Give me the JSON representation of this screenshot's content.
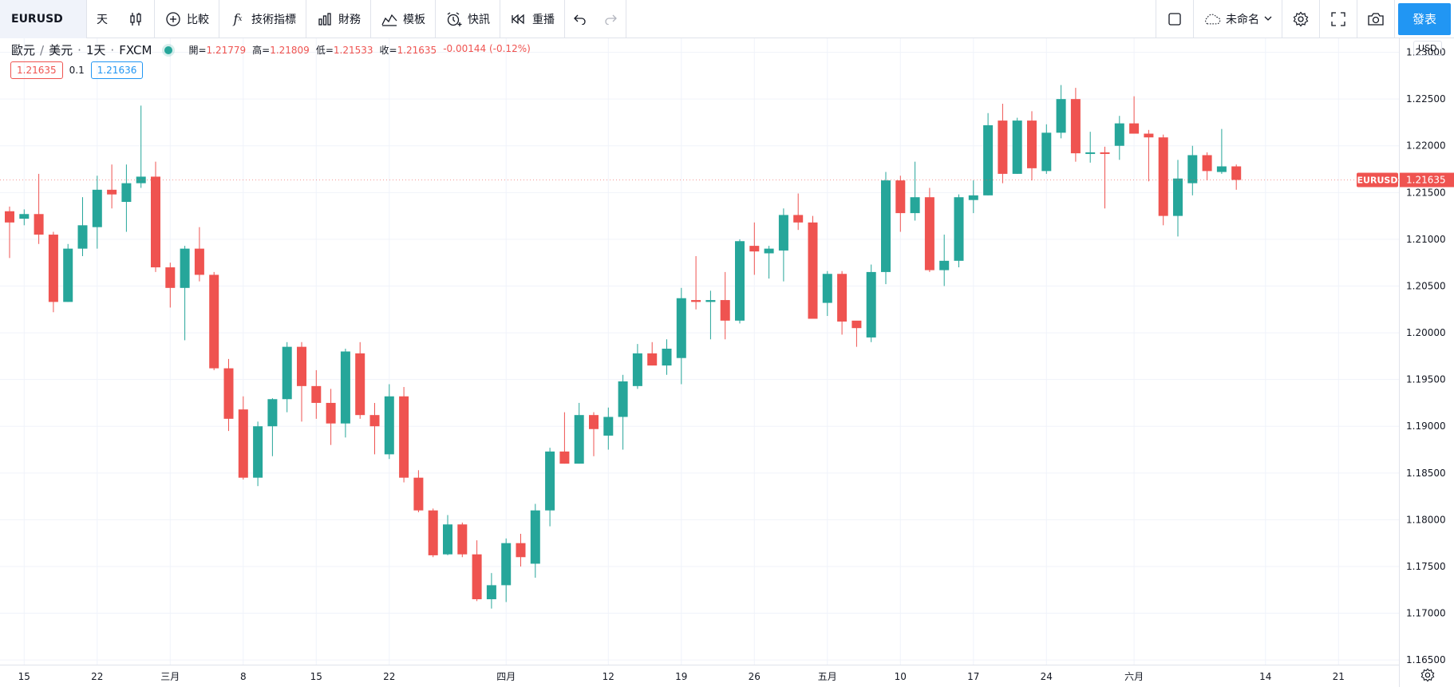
{
  "toolbar": {
    "symbol": "EURUSD",
    "interval": "天",
    "compare": "比較",
    "indicators": "技術指標",
    "financials": "財務",
    "templates": "模板",
    "alerts": "快訊",
    "replay": "重播",
    "layout_name": "未命名",
    "publish": "發表"
  },
  "legend": {
    "base": "歐元",
    "quote": "美元",
    "interval": "1天",
    "exchange": "FXCM",
    "open_label": "開=",
    "open": "1.21779",
    "high_label": "高=",
    "high": "1.21809",
    "low_label": "低=",
    "low": "1.21533",
    "close_label": "收=",
    "close": "1.21635",
    "change": "-0.00144",
    "change_pct": "(-0.12%)"
  },
  "trade": {
    "sell": "1.21635",
    "spread": "0.1",
    "buy": "1.21636"
  },
  "price_axis": {
    "currency": "USD",
    "last_label": "EURUSD",
    "last_price": "1.21635",
    "ticks": [
      "1.23000",
      "1.22500",
      "1.22000",
      "1.21500",
      "1.21000",
      "1.20500",
      "1.20000",
      "1.19500",
      "1.19000",
      "1.18500",
      "1.18000",
      "1.17500",
      "1.17000",
      "1.16500"
    ]
  },
  "time_axis": {
    "labels": [
      {
        "text": "15",
        "bar": 1
      },
      {
        "text": "22",
        "bar": 6
      },
      {
        "text": "三月",
        "bar": 11
      },
      {
        "text": "8",
        "bar": 16
      },
      {
        "text": "15",
        "bar": 21
      },
      {
        "text": "22",
        "bar": 26
      },
      {
        "text": "四月",
        "bar": 34
      },
      {
        "text": "12",
        "bar": 41
      },
      {
        "text": "19",
        "bar": 46
      },
      {
        "text": "26",
        "bar": 51
      },
      {
        "text": "五月",
        "bar": 56
      },
      {
        "text": "10",
        "bar": 61
      },
      {
        "text": "17",
        "bar": 66
      },
      {
        "text": "24",
        "bar": 71
      },
      {
        "text": "六月",
        "bar": 77
      },
      {
        "text": "14",
        "bar": 86
      },
      {
        "text": "21",
        "bar": 91
      }
    ]
  },
  "colors": {
    "up": "#26a69a",
    "down": "#ef5350",
    "grid": "#f0f3fa",
    "accent": "#2196f3"
  },
  "chart_data": {
    "type": "candlestick",
    "symbol": "EURUSD",
    "ylim": [
      1.1645,
      1.2315
    ],
    "candles": [
      {
        "o": 1.213,
        "h": 1.2135,
        "l": 1.208,
        "c": 1.2118
      },
      {
        "o": 1.2122,
        "h": 1.2132,
        "l": 1.2115,
        "c": 1.2127
      },
      {
        "o": 1.2127,
        "h": 1.217,
        "l": 1.2095,
        "c": 1.2105
      },
      {
        "o": 1.2105,
        "h": 1.2108,
        "l": 1.2022,
        "c": 1.2033
      },
      {
        "o": 1.2033,
        "h": 1.2095,
        "l": 1.2033,
        "c": 1.209
      },
      {
        "o": 1.209,
        "h": 1.2145,
        "l": 1.2082,
        "c": 1.2115
      },
      {
        "o": 1.2113,
        "h": 1.2168,
        "l": 1.209,
        "c": 1.2153
      },
      {
        "o": 1.2153,
        "h": 1.218,
        "l": 1.2133,
        "c": 1.2148
      },
      {
        "o": 1.214,
        "h": 1.218,
        "l": 1.2108,
        "c": 1.216
      },
      {
        "o": 1.216,
        "h": 1.2243,
        "l": 1.2155,
        "c": 1.2167
      },
      {
        "o": 1.2167,
        "h": 1.2183,
        "l": 1.2065,
        "c": 1.207
      },
      {
        "o": 1.207,
        "h": 1.2075,
        "l": 1.2027,
        "c": 1.2048
      },
      {
        "o": 1.2048,
        "h": 1.2093,
        "l": 1.1992,
        "c": 1.209
      },
      {
        "o": 1.209,
        "h": 1.2113,
        "l": 1.2055,
        "c": 1.2062
      },
      {
        "o": 1.2062,
        "h": 1.2065,
        "l": 1.196,
        "c": 1.1962
      },
      {
        "o": 1.1962,
        "h": 1.1972,
        "l": 1.1895,
        "c": 1.1908
      },
      {
        "o": 1.1918,
        "h": 1.1932,
        "l": 1.1843,
        "c": 1.1845
      },
      {
        "o": 1.1845,
        "h": 1.1905,
        "l": 1.1836,
        "c": 1.19
      },
      {
        "o": 1.19,
        "h": 1.193,
        "l": 1.1868,
        "c": 1.1929
      },
      {
        "o": 1.1929,
        "h": 1.199,
        "l": 1.1915,
        "c": 1.1985
      },
      {
        "o": 1.1985,
        "h": 1.199,
        "l": 1.1905,
        "c": 1.1943
      },
      {
        "o": 1.1943,
        "h": 1.196,
        "l": 1.1908,
        "c": 1.1925
      },
      {
        "o": 1.1925,
        "h": 1.194,
        "l": 1.188,
        "c": 1.1903
      },
      {
        "o": 1.1903,
        "h": 1.1983,
        "l": 1.1888,
        "c": 1.198
      },
      {
        "o": 1.1978,
        "h": 1.199,
        "l": 1.1908,
        "c": 1.1912
      },
      {
        "o": 1.1912,
        "h": 1.1925,
        "l": 1.187,
        "c": 1.19
      },
      {
        "o": 1.187,
        "h": 1.1945,
        "l": 1.1865,
        "c": 1.1932
      },
      {
        "o": 1.1932,
        "h": 1.1942,
        "l": 1.184,
        "c": 1.1845
      },
      {
        "o": 1.1845,
        "h": 1.1853,
        "l": 1.1808,
        "c": 1.181
      },
      {
        "o": 1.181,
        "h": 1.1812,
        "l": 1.176,
        "c": 1.1762
      },
      {
        "o": 1.1763,
        "h": 1.1805,
        "l": 1.1762,
        "c": 1.1795
      },
      {
        "o": 1.1795,
        "h": 1.1797,
        "l": 1.176,
        "c": 1.1763
      },
      {
        "o": 1.1763,
        "h": 1.1778,
        "l": 1.1713,
        "c": 1.1715
      },
      {
        "o": 1.1715,
        "h": 1.1743,
        "l": 1.1705,
        "c": 1.173
      },
      {
        "o": 1.173,
        "h": 1.178,
        "l": 1.1712,
        "c": 1.1775
      },
      {
        "o": 1.1775,
        "h": 1.1785,
        "l": 1.175,
        "c": 1.176
      },
      {
        "o": 1.1753,
        "h": 1.1817,
        "l": 1.1738,
        "c": 1.181
      },
      {
        "o": 1.181,
        "h": 1.1877,
        "l": 1.1793,
        "c": 1.1873
      },
      {
        "o": 1.1873,
        "h": 1.1915,
        "l": 1.186,
        "c": 1.186
      },
      {
        "o": 1.186,
        "h": 1.1925,
        "l": 1.186,
        "c": 1.1912
      },
      {
        "o": 1.1912,
        "h": 1.1915,
        "l": 1.1868,
        "c": 1.1897
      },
      {
        "o": 1.189,
        "h": 1.192,
        "l": 1.1875,
        "c": 1.191
      },
      {
        "o": 1.191,
        "h": 1.1955,
        "l": 1.1875,
        "c": 1.1948
      },
      {
        "o": 1.1943,
        "h": 1.1988,
        "l": 1.194,
        "c": 1.1978
      },
      {
        "o": 1.1978,
        "h": 1.199,
        "l": 1.1965,
        "c": 1.1965
      },
      {
        "o": 1.1965,
        "h": 1.1993,
        "l": 1.1955,
        "c": 1.1983
      },
      {
        "o": 1.1973,
        "h": 1.2048,
        "l": 1.1945,
        "c": 1.2037
      },
      {
        "o": 1.2035,
        "h": 1.2082,
        "l": 1.2025,
        "c": 1.2033
      },
      {
        "o": 1.2033,
        "h": 1.2045,
        "l": 1.1993,
        "c": 1.2035
      },
      {
        "o": 1.2035,
        "h": 1.2065,
        "l": 1.1993,
        "c": 1.2013
      },
      {
        "o": 1.2013,
        "h": 1.21,
        "l": 1.201,
        "c": 1.2098
      },
      {
        "o": 1.2093,
        "h": 1.2118,
        "l": 1.2062,
        "c": 1.2087
      },
      {
        "o": 1.2085,
        "h": 1.2093,
        "l": 1.2058,
        "c": 1.209
      },
      {
        "o": 1.2088,
        "h": 1.2133,
        "l": 1.2055,
        "c": 1.2126
      },
      {
        "o": 1.2126,
        "h": 1.2149,
        "l": 1.211,
        "c": 1.2118
      },
      {
        "o": 1.2118,
        "h": 1.2125,
        "l": 1.2018,
        "c": 1.2015
      },
      {
        "o": 1.2032,
        "h": 1.2066,
        "l": 1.2018,
        "c": 1.2063
      },
      {
        "o": 1.2063,
        "h": 1.2066,
        "l": 1.1998,
        "c": 1.2012
      },
      {
        "o": 1.2013,
        "h": 1.2012,
        "l": 1.1985,
        "c": 1.2005
      },
      {
        "o": 1.1995,
        "h": 1.2073,
        "l": 1.199,
        "c": 1.2065
      },
      {
        "o": 1.2065,
        "h": 1.2172,
        "l": 1.2052,
        "c": 1.2163
      },
      {
        "o": 1.2163,
        "h": 1.2168,
        "l": 1.2108,
        "c": 1.2128
      },
      {
        "o": 1.2128,
        "h": 1.2183,
        "l": 1.212,
        "c": 1.2145
      },
      {
        "o": 1.2145,
        "h": 1.2155,
        "l": 1.2065,
        "c": 1.2067
      },
      {
        "o": 1.2067,
        "h": 1.2105,
        "l": 1.205,
        "c": 1.2077
      },
      {
        "o": 1.2077,
        "h": 1.2148,
        "l": 1.207,
        "c": 1.2145
      },
      {
        "o": 1.2142,
        "h": 1.2163,
        "l": 1.2128,
        "c": 1.2147
      },
      {
        "o": 1.2147,
        "h": 1.2235,
        "l": 1.2147,
        "c": 1.2222
      },
      {
        "o": 1.2227,
        "h": 1.2245,
        "l": 1.216,
        "c": 1.217
      },
      {
        "o": 1.217,
        "h": 1.223,
        "l": 1.217,
        "c": 1.2227
      },
      {
        "o": 1.2227,
        "h": 1.2237,
        "l": 1.2163,
        "c": 1.2176
      },
      {
        "o": 1.2173,
        "h": 1.2223,
        "l": 1.217,
        "c": 1.2214
      },
      {
        "o": 1.2214,
        "h": 1.2265,
        "l": 1.2208,
        "c": 1.225
      },
      {
        "o": 1.225,
        "h": 1.2262,
        "l": 1.2183,
        "c": 1.2192
      },
      {
        "o": 1.2193,
        "h": 1.2215,
        "l": 1.2182,
        "c": 1.2193
      },
      {
        "o": 1.2193,
        "h": 1.2199,
        "l": 1.2133,
        "c": 1.2192
      },
      {
        "o": 1.22,
        "h": 1.2232,
        "l": 1.2185,
        "c": 1.2224
      },
      {
        "o": 1.2224,
        "h": 1.2253,
        "l": 1.2213,
        "c": 1.2213
      },
      {
        "o": 1.2213,
        "h": 1.2217,
        "l": 1.2162,
        "c": 1.2209
      },
      {
        "o": 1.2209,
        "h": 1.2212,
        "l": 1.2115,
        "c": 1.2125
      },
      {
        "o": 1.2125,
        "h": 1.2185,
        "l": 1.2103,
        "c": 1.2165
      },
      {
        "o": 1.216,
        "h": 1.22,
        "l": 1.2147,
        "c": 1.219
      },
      {
        "o": 1.219,
        "h": 1.2193,
        "l": 1.2163,
        "c": 1.2173
      },
      {
        "o": 1.2172,
        "h": 1.2218,
        "l": 1.217,
        "c": 1.2178
      },
      {
        "o": 1.2178,
        "h": 1.218,
        "l": 1.2153,
        "c": 1.21635
      }
    ]
  }
}
